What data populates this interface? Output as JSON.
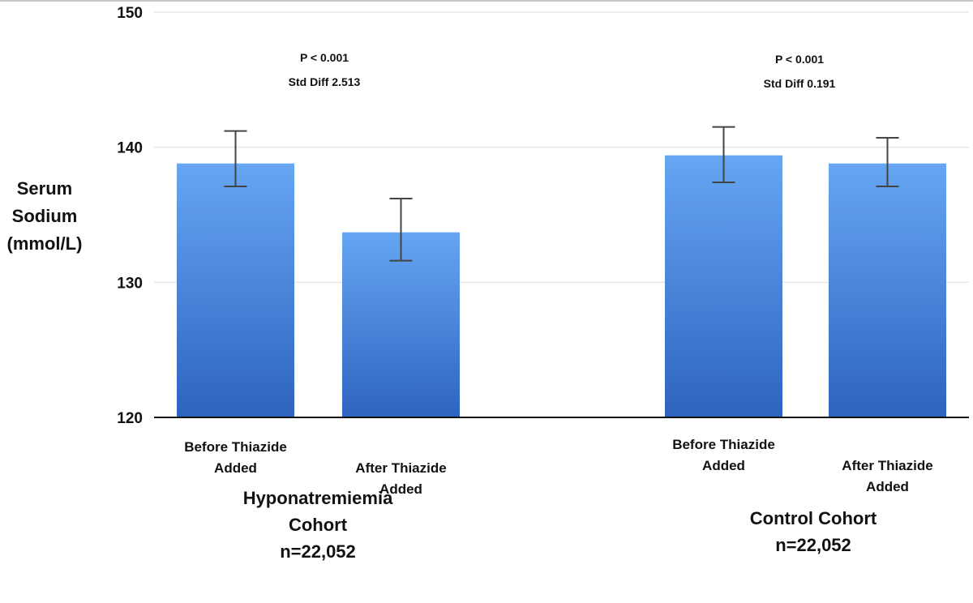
{
  "chart_data": {
    "type": "bar",
    "ylabel": [
      "Serum",
      "Sodium",
      "(mmol/L)"
    ],
    "ylim": [
      120,
      150
    ],
    "yticks": [
      120,
      130,
      140,
      150
    ],
    "grid": true,
    "groups": [
      {
        "label": [
          "Hyponatremiemia",
          "Cohort",
          "n=22,052"
        ],
        "stats": [
          "P < 0.001",
          "Std Diff 2.513"
        ],
        "bars": [
          {
            "label": [
              "Before Thiazide",
              "Added"
            ],
            "value": 138.8,
            "err_low": 137.1,
            "err_high": 141.2
          },
          {
            "label": [
              "After Thiazide",
              "Added"
            ],
            "value": 133.7,
            "err_low": 131.6,
            "err_high": 136.2
          }
        ]
      },
      {
        "label": [
          "Control Cohort",
          "n=22,052"
        ],
        "stats": [
          "P < 0.001",
          "Std Diff 0.191"
        ],
        "bars": [
          {
            "label": [
              "Before Thiazide",
              "Added"
            ],
            "value": 139.4,
            "err_low": 137.4,
            "err_high": 141.5
          },
          {
            "label": [
              "After Thiazide",
              "Added"
            ],
            "value": 138.8,
            "err_low": 137.1,
            "err_high": 140.7
          }
        ]
      }
    ],
    "colors": {
      "bar_top": "#66a6f2",
      "bar_bottom": "#2e63c0",
      "error_bar": "#444444",
      "grid": "#e6e6e6"
    }
  }
}
